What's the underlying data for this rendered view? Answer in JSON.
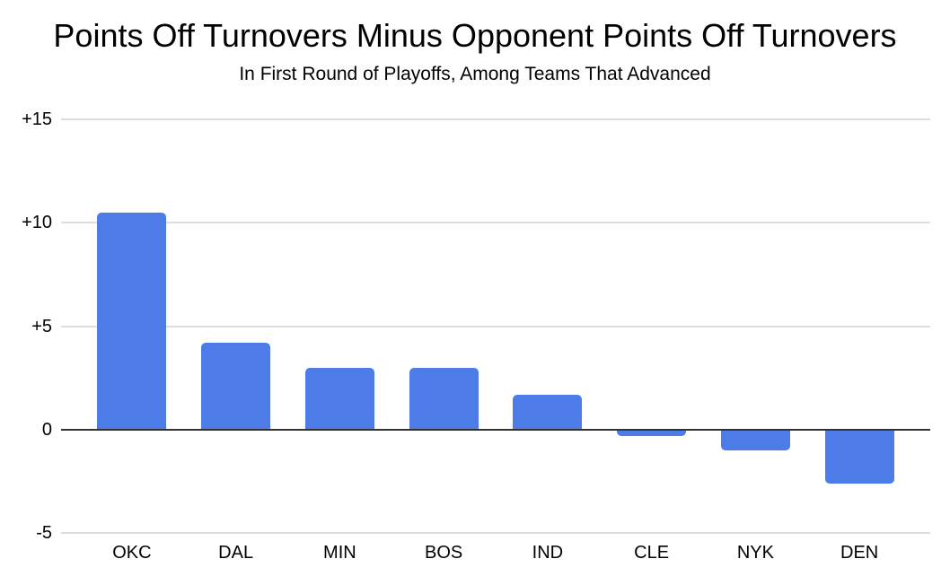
{
  "chart_data": {
    "type": "bar",
    "title": "Points Off Turnovers Minus Opponent Points Off Turnovers",
    "subtitle": "In First Round of Playoffs, Among Teams That Advanced",
    "categories": [
      "OKC",
      "DAL",
      "MIN",
      "BOS",
      "IND",
      "CLE",
      "NYK",
      "DEN"
    ],
    "values": [
      10.5,
      4.2,
      3,
      3,
      1.7,
      -0.3,
      -1,
      -2.6
    ],
    "y_ticks": [
      {
        "value": 15,
        "label": "+15"
      },
      {
        "value": 10,
        "label": "+10"
      },
      {
        "value": 5,
        "label": "+5"
      },
      {
        "value": 0,
        "label": "0"
      },
      {
        "value": -5,
        "label": "-5"
      }
    ],
    "ylim": [
      -5,
      15
    ],
    "xlabel": "",
    "ylabel": "",
    "grid": "horizontal",
    "legend_position": "none",
    "colors": {
      "bar": "#4d7ce8",
      "gridline": "#dddddd",
      "zero_line": "#333333",
      "text": "#000000",
      "background": "#ffffff"
    }
  }
}
